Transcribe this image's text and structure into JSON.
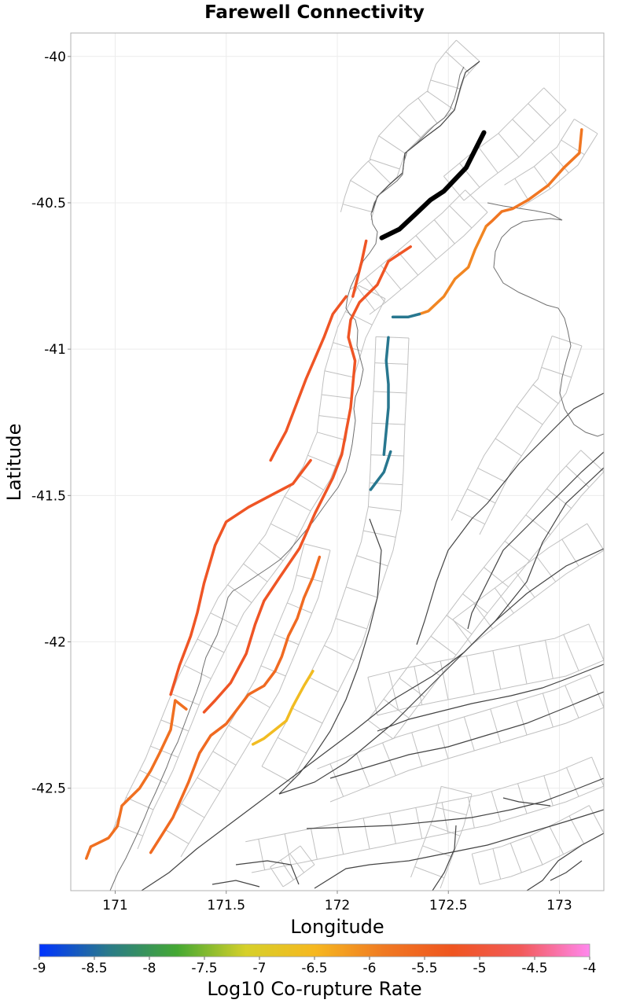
{
  "chart_data": {
    "type": "map",
    "title": "Farewell Connectivity",
    "xlabel": "Longitude",
    "ylabel": "Latitude",
    "xlim": [
      170.8,
      173.2
    ],
    "ylim": [
      -42.85,
      -39.92
    ],
    "x_ticks": [
      171,
      171.5,
      172,
      172.5,
      173
    ],
    "x_tick_labels": [
      "171",
      "171.5",
      "172",
      "172.5",
      "173"
    ],
    "y_ticks": [
      -40,
      -40.5,
      -41,
      -41.5,
      -42,
      -42.5
    ],
    "y_tick_labels": [
      "-40",
      "-40.5",
      "-41",
      "-41.5",
      "-42",
      "-42.5"
    ],
    "grid": true,
    "colorbar": {
      "label": "Log10 Co-rupture Rate",
      "range": [
        -9,
        -4
      ],
      "ticks": [
        -9,
        -8.5,
        -8,
        -7.5,
        -7,
        -6.5,
        -6,
        -5.5,
        -5,
        -4.5,
        -4
      ],
      "tick_labels": [
        "-9",
        "-8.5",
        "-8",
        "-7.5",
        "-7",
        "-6.5",
        "-6",
        "-5.5",
        "-5",
        "-4.5",
        "-4"
      ],
      "colormap": [
        "#0033ff",
        "#2a7a8a",
        "#44a833",
        "#d6d02a",
        "#f6b820",
        "#f07a22",
        "#ef5520",
        "#f25a5a",
        "#ff88ee"
      ],
      "placement": "bottom"
    },
    "target_fault": {
      "name": "Farewell",
      "color": "#000000",
      "trace": [
        [
          172.2,
          -40.62
        ],
        [
          172.28,
          -40.59
        ],
        [
          172.35,
          -40.54
        ],
        [
          172.42,
          -40.49
        ],
        [
          172.48,
          -40.46
        ],
        [
          172.53,
          -40.42
        ],
        [
          172.58,
          -40.38
        ],
        [
          172.62,
          -40.32
        ],
        [
          172.66,
          -40.26
        ]
      ]
    },
    "connected_faults": [
      {
        "log10_rate": -5.2,
        "trace": [
          [
            172.13,
            -40.63
          ],
          [
            172.11,
            -40.7
          ],
          [
            172.09,
            -40.76
          ],
          [
            172.07,
            -40.82
          ]
        ]
      },
      {
        "log10_rate": -5.2,
        "trace": [
          [
            172.33,
            -40.65
          ],
          [
            172.23,
            -40.7
          ],
          [
            172.18,
            -40.78
          ],
          [
            172.1,
            -40.84
          ],
          [
            172.06,
            -40.9
          ],
          [
            172.05,
            -40.96
          ],
          [
            172.08,
            -41.04
          ],
          [
            172.07,
            -41.12
          ],
          [
            172.06,
            -41.2
          ],
          [
            172.04,
            -41.28
          ],
          [
            172.02,
            -41.36
          ],
          [
            171.98,
            -41.44
          ],
          [
            171.9,
            -41.56
          ],
          [
            171.83,
            -41.68
          ],
          [
            171.74,
            -41.78
          ],
          [
            171.67,
            -41.86
          ],
          [
            171.63,
            -41.94
          ],
          [
            171.59,
            -42.04
          ],
          [
            171.52,
            -42.14
          ],
          [
            171.45,
            -42.2
          ],
          [
            171.4,
            -42.24
          ]
        ]
      },
      {
        "log10_rate": -5.2,
        "trace": [
          [
            171.88,
            -41.38
          ],
          [
            171.8,
            -41.46
          ],
          [
            171.7,
            -41.5
          ],
          [
            171.6,
            -41.54
          ],
          [
            171.5,
            -41.59
          ],
          [
            171.45,
            -41.67
          ],
          [
            171.4,
            -41.8
          ],
          [
            171.37,
            -41.9
          ],
          [
            171.34,
            -41.98
          ],
          [
            171.29,
            -42.08
          ],
          [
            171.25,
            -42.18
          ]
        ]
      },
      {
        "log10_rate": -5.2,
        "trace": [
          [
            172.04,
            -40.82
          ],
          [
            171.98,
            -40.88
          ],
          [
            171.94,
            -40.96
          ],
          [
            171.9,
            -41.03
          ],
          [
            171.86,
            -41.1
          ],
          [
            171.81,
            -41.2
          ],
          [
            171.77,
            -41.28
          ],
          [
            171.72,
            -41.35
          ],
          [
            171.7,
            -41.38
          ]
        ]
      },
      {
        "log10_rate": -5.8,
        "trace": [
          [
            173.1,
            -40.25
          ],
          [
            173.09,
            -40.33
          ],
          [
            173.02,
            -40.38
          ],
          [
            172.95,
            -40.44
          ],
          [
            172.86,
            -40.49
          ],
          [
            172.79,
            -40.52
          ],
          [
            172.74,
            -40.53
          ],
          [
            172.7,
            -40.56
          ],
          [
            172.67,
            -40.58
          ]
        ]
      },
      {
        "log10_rate": -6.0,
        "trace": [
          [
            172.67,
            -40.58
          ],
          [
            172.62,
            -40.66
          ],
          [
            172.59,
            -40.72
          ],
          [
            172.53,
            -40.76
          ],
          [
            172.48,
            -40.82
          ],
          [
            172.41,
            -40.87
          ],
          [
            172.37,
            -40.88
          ]
        ]
      },
      {
        "log10_rate": -8.4,
        "trace": [
          [
            172.37,
            -40.88
          ],
          [
            172.32,
            -40.89
          ],
          [
            172.25,
            -40.89
          ]
        ]
      },
      {
        "log10_rate": -8.4,
        "trace": [
          [
            172.23,
            -40.96
          ],
          [
            172.22,
            -41.04
          ],
          [
            172.23,
            -41.12
          ],
          [
            172.23,
            -41.2
          ],
          [
            172.22,
            -41.28
          ],
          [
            172.21,
            -41.36
          ]
        ]
      },
      {
        "log10_rate": -8.4,
        "trace": [
          [
            172.24,
            -41.35
          ],
          [
            172.21,
            -41.42
          ],
          [
            172.15,
            -41.48
          ]
        ]
      },
      {
        "log10_rate": -5.6,
        "trace": [
          [
            171.92,
            -41.71
          ],
          [
            171.89,
            -41.78
          ],
          [
            171.85,
            -41.85
          ],
          [
            171.82,
            -41.92
          ],
          [
            171.78,
            -41.98
          ],
          [
            171.75,
            -42.05
          ],
          [
            171.72,
            -42.1
          ],
          [
            171.67,
            -42.15
          ],
          [
            171.6,
            -42.18
          ],
          [
            171.55,
            -42.23
          ],
          [
            171.5,
            -42.28
          ],
          [
            171.43,
            -42.32
          ],
          [
            171.38,
            -42.38
          ],
          [
            171.33,
            -42.48
          ],
          [
            171.26,
            -42.6
          ],
          [
            171.21,
            -42.66
          ],
          [
            171.16,
            -42.72
          ]
        ]
      },
      {
        "log10_rate": -5.7,
        "trace": [
          [
            171.32,
            -42.23
          ],
          [
            171.27,
            -42.2
          ],
          [
            171.25,
            -42.3
          ],
          [
            171.2,
            -42.38
          ],
          [
            171.16,
            -42.44
          ],
          [
            171.11,
            -42.5
          ],
          [
            171.03,
            -42.56
          ],
          [
            171.01,
            -42.63
          ],
          [
            170.97,
            -42.67
          ],
          [
            170.89,
            -42.7
          ],
          [
            170.87,
            -42.74
          ]
        ]
      },
      {
        "log10_rate": -6.6,
        "trace": [
          [
            171.89,
            -42.1
          ],
          [
            171.85,
            -42.15
          ],
          [
            171.8,
            -42.22
          ],
          [
            171.77,
            -42.27
          ],
          [
            171.72,
            -42.3
          ],
          [
            171.67,
            -42.33
          ],
          [
            171.62,
            -42.35
          ]
        ]
      }
    ]
  }
}
